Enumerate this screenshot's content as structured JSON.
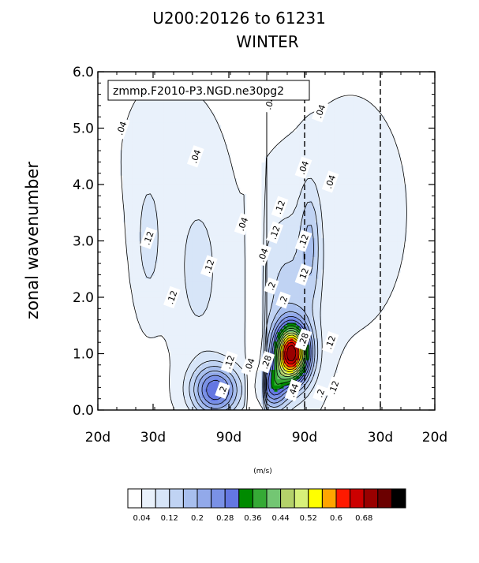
{
  "chart_data": {
    "type": "heatmap",
    "title_line1": "U200:20126 to 61231",
    "title_line2": "WINTER",
    "ylabel": "zonal wavenumber",
    "info_label": "zmmp.F2010-P3.NGD.ne30pg2",
    "units": "(m/s)",
    "ylim": [
      0,
      6
    ],
    "y_ticks": [
      "0.0",
      "1.0",
      "2.0",
      "3.0",
      "4.0",
      "5.0",
      "6.0"
    ],
    "x_ticks": [
      "20d",
      "30d",
      "90d",
      "90d",
      "30d",
      "20d"
    ],
    "colorbar_levels": [
      0.04,
      0.08,
      0.12,
      0.16,
      0.2,
      0.24,
      0.28,
      0.32,
      0.36,
      0.4,
      0.44,
      0.48,
      0.52,
      0.56,
      0.6,
      0.64,
      0.68
    ],
    "colorbar_tick_labels": [
      "0.04",
      "0.12",
      "0.2",
      "0.28",
      "0.36",
      "0.44",
      "0.52",
      "0.6",
      "0.68"
    ],
    "colorbar_colors": [
      "#ffffff",
      "#e9f1fb",
      "#d7e5f8",
      "#c0d3f3",
      "#a8bfee",
      "#92a9ea",
      "#7a91e6",
      "#6477e2",
      "#008a00",
      "#35aa35",
      "#73c673",
      "#b4d16a",
      "#d7f07a",
      "#ffff00",
      "#ffa500",
      "#ff1a00",
      "#cc0000",
      "#990000",
      "#6b0000",
      "#000000"
    ],
    "contour_labels": [
      {
        "text": ".04",
        "x": -0.43,
        "y": 5.0
      },
      {
        "text": ".04",
        "x": -0.21,
        "y": 4.5
      },
      {
        "text": ".04",
        "x": -0.07,
        "y": 3.3
      },
      {
        "text": ".04",
        "x": -0.05,
        "y": 0.8
      },
      {
        "text": ".04",
        "x": -0.01,
        "y": 2.75
      },
      {
        "text": ".04",
        "x": 0.01,
        "y": 5.45
      },
      {
        "text": ".04",
        "x": 0.11,
        "y": 4.3
      },
      {
        "text": ".04",
        "x": 0.16,
        "y": 5.3
      },
      {
        "text": ".04",
        "x": 0.19,
        "y": 4.05
      },
      {
        "text": ".12",
        "x": -0.35,
        "y": 3.05
      },
      {
        "text": ".12",
        "x": -0.28,
        "y": 2.0
      },
      {
        "text": ".12",
        "x": -0.17,
        "y": 2.55
      },
      {
        "text": ".12",
        "x": -0.11,
        "y": 0.85
      },
      {
        "text": ".12",
        "x": 0.025,
        "y": 3.15
      },
      {
        "text": ".12",
        "x": 0.04,
        "y": 3.6
      },
      {
        "text": ".12",
        "x": 0.11,
        "y": 3.0
      },
      {
        "text": ".12",
        "x": 0.11,
        "y": 2.4
      },
      {
        "text": ".12",
        "x": 0.19,
        "y": 1.2
      },
      {
        "text": ".12",
        "x": 0.2,
        "y": 0.4
      },
      {
        "text": ".2",
        "x": -0.13,
        "y": 0.35
      },
      {
        "text": ".2",
        "x": 0.015,
        "y": 2.2
      },
      {
        "text": ".2",
        "x": 0.05,
        "y": 1.95
      },
      {
        "text": ".2",
        "x": 0.16,
        "y": 0.3
      },
      {
        "text": ".28",
        "x": 0.0,
        "y": 0.85
      },
      {
        "text": ".28",
        "x": 0.11,
        "y": 1.25
      },
      {
        "text": ".44",
        "x": 0.08,
        "y": 0.35
      }
    ]
  }
}
